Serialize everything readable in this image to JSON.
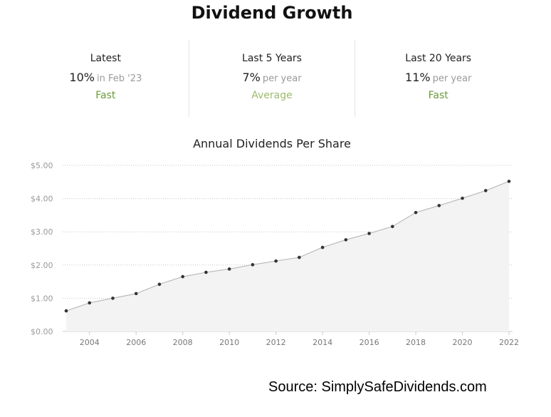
{
  "title": "Dividend Growth",
  "stats": [
    {
      "label": "Latest",
      "value": "10%",
      "suffix": "in Feb '23",
      "rating": "Fast",
      "rating_color": "#6c9a3c"
    },
    {
      "label": "Last 5 Years",
      "value": "7%",
      "suffix": "per year",
      "rating": "Average",
      "rating_color": "#9dbb6b"
    },
    {
      "label": "Last 20 Years",
      "value": "11%",
      "suffix": "per year",
      "rating": "Fast",
      "rating_color": "#6c9a3c"
    }
  ],
  "chart_data": {
    "type": "area",
    "title": "Annual Dividends Per Share",
    "xlabel": "",
    "ylabel": "",
    "x": [
      2003,
      2004,
      2005,
      2006,
      2007,
      2008,
      2009,
      2010,
      2011,
      2012,
      2013,
      2014,
      2015,
      2016,
      2017,
      2018,
      2019,
      2020,
      2021,
      2022
    ],
    "series": [
      {
        "values": [
          0.62,
          0.86,
          1.0,
          1.14,
          1.42,
          1.65,
          1.78,
          1.88,
          2.01,
          2.12,
          2.23,
          2.53,
          2.76,
          2.95,
          3.16,
          3.58,
          3.79,
          4.01,
          4.24,
          4.52
        ]
      }
    ],
    "xticks": [
      "2004",
      "2006",
      "2008",
      "2010",
      "2012",
      "2014",
      "2016",
      "2018",
      "2020",
      "2022"
    ],
    "yticks": [
      "$0.00",
      "$1.00",
      "$2.00",
      "$3.00",
      "$4.00",
      "$5.00"
    ],
    "ylim": [
      0,
      5
    ],
    "xlim": [
      2003,
      2022
    ],
    "grid": true,
    "legend": "none",
    "line_color": "#bbbbbb",
    "fill_color": "#f3f3f3",
    "point_color": "#333333"
  },
  "source": "Source: SimplySafeDividends.com"
}
